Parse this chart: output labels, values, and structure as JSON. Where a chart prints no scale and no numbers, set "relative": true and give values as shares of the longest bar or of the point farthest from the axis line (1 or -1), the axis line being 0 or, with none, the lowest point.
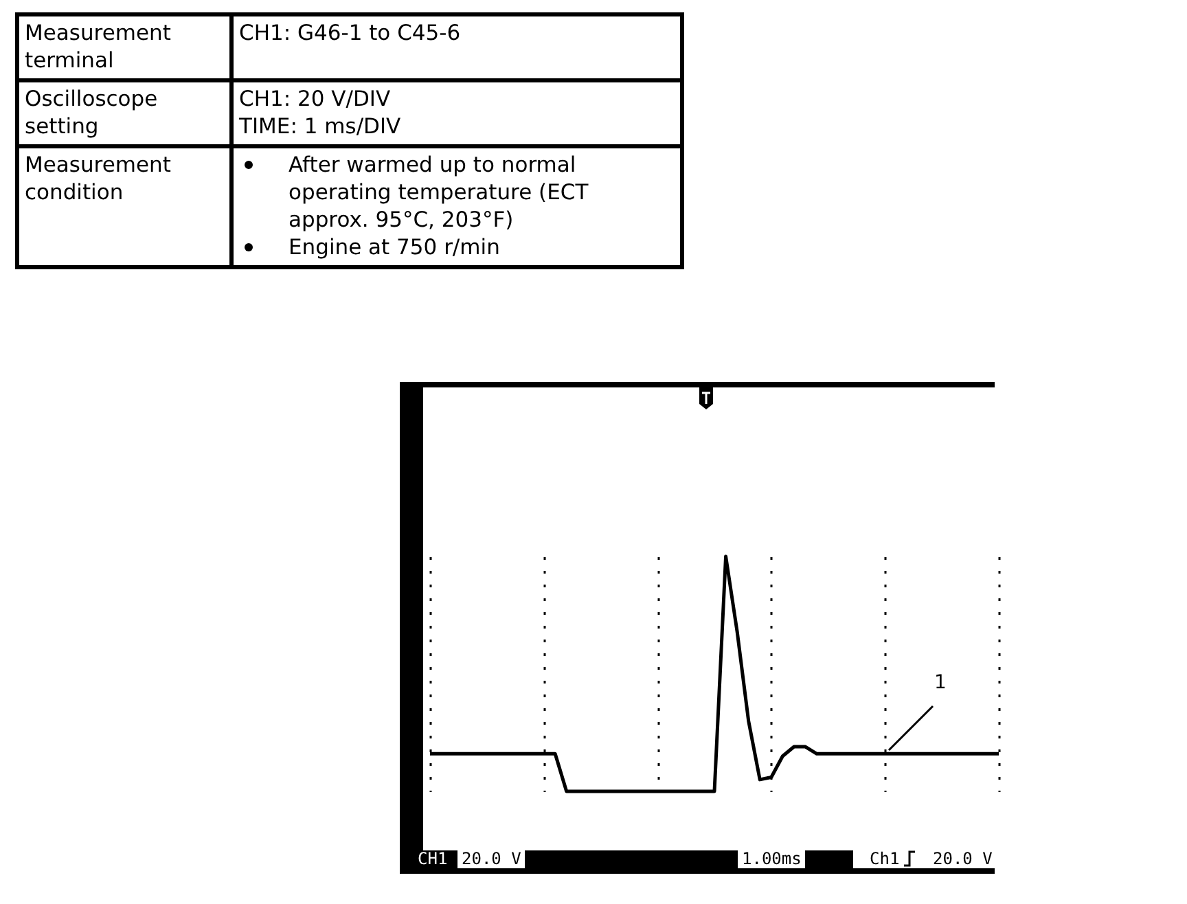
{
  "chart_data": {
    "type": "line",
    "relative": true,
    "grid": true,
    "color": "#000000",
    "categories": [
      null,
      null,
      null,
      null,
      null,
      null,
      null,
      null,
      null,
      null,
      null,
      null,
      null,
      null,
      null,
      null,
      null,
      null,
      null,
      null,
      null,
      null,
      null,
      null,
      null,
      null,
      null,
      null,
      null,
      null,
      null,
      null,
      null,
      null,
      null,
      null,
      null,
      null,
      null,
      null,
      null,
      null,
      null,
      null,
      null,
      null,
      null,
      null,
      null,
      null,
      null
    ],
    "values": [
      0.16,
      0.16,
      0.16,
      0.16,
      0.16,
      0.16,
      0.16,
      0.16,
      0.16,
      0.16,
      0.16,
      0.16,
      0,
      0,
      0,
      0,
      0,
      0,
      0,
      0,
      0,
      0,
      0,
      0,
      0,
      0,
      1,
      0.68,
      0.3,
      0.05,
      0.06,
      0.15,
      0.19,
      0.19,
      0.16,
      0.16,
      0.16,
      0.16,
      0.16,
      0.16,
      0.16,
      0.16,
      0.16,
      0.16,
      0.16,
      0.16,
      0.16,
      0.16,
      0.16,
      0.16,
      0.16
    ],
    "annotations": [
      "Measurement terminal",
      "CH1: G46-1 to C45-6",
      "Oscilloscope setting",
      "CH1: 20 V/DIV",
      "TIME: 1 ms/DIV",
      "Measurement condition",
      "After warmed up to normal operating temperature (ECT approx. 95°C, 203°F)",
      "Engine at 750 r/min",
      "1",
      "CH1",
      "20.0 V",
      "1.00ms",
      "Ch1",
      "20.0 V"
    ]
  }
}
